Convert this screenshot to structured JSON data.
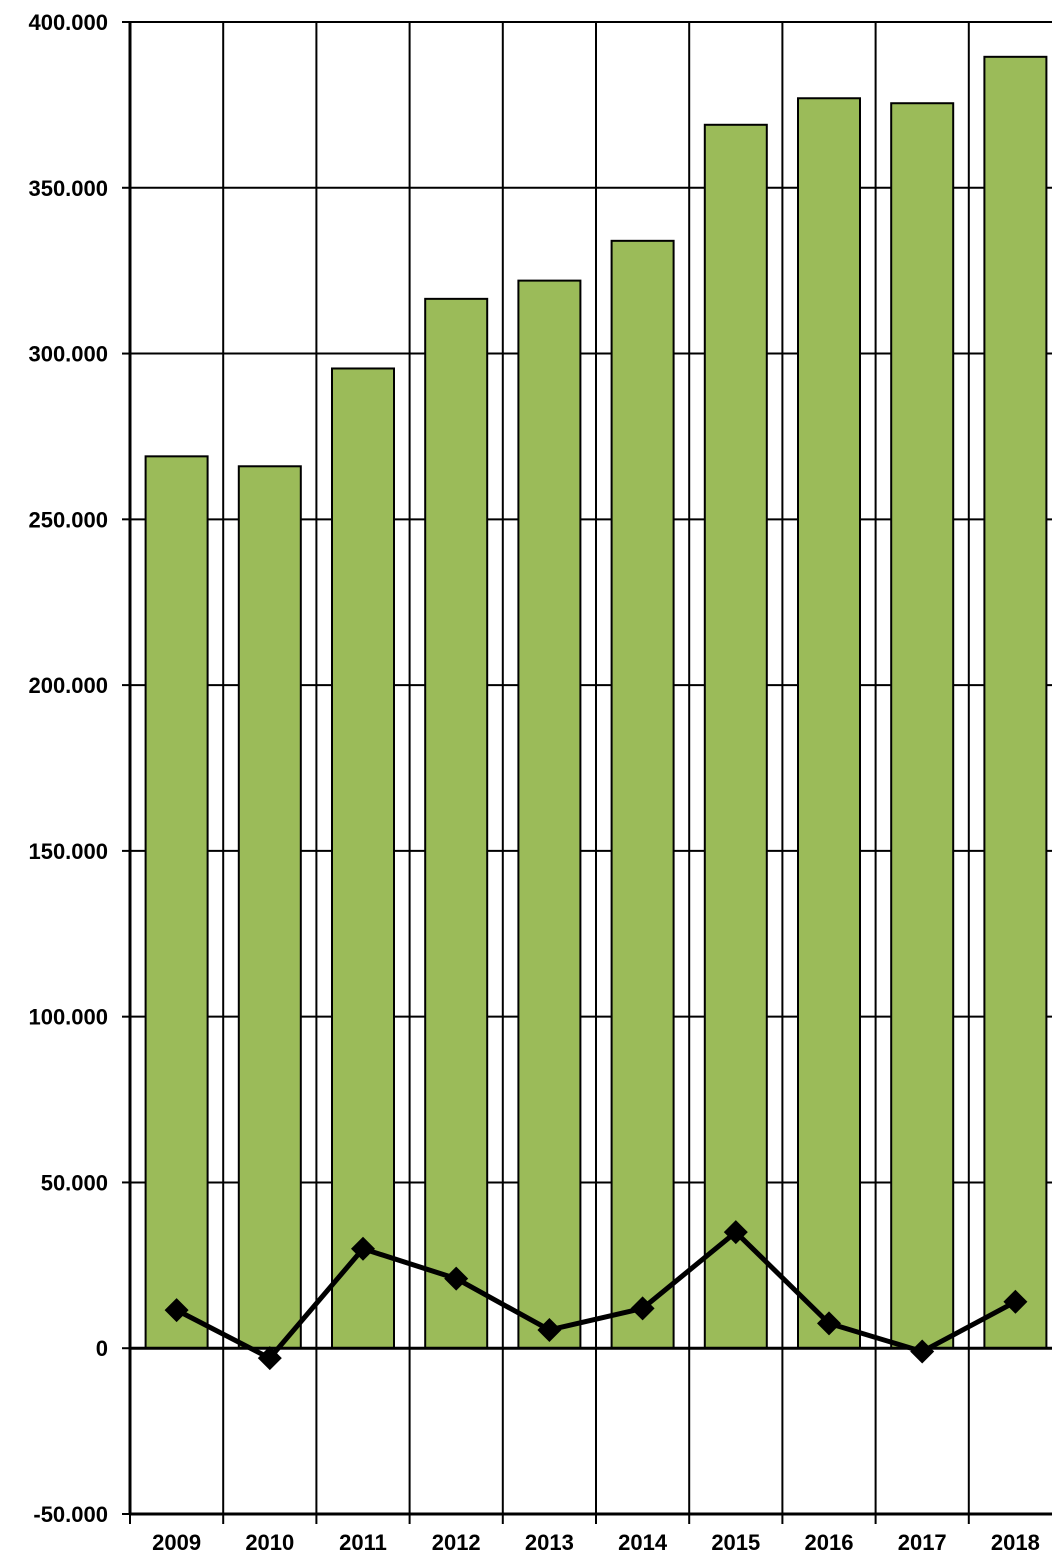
{
  "chart_data": {
    "type": "bar",
    "title": "",
    "xlabel": "",
    "ylabel": "",
    "categories": [
      "2009",
      "2010",
      "2011",
      "2012",
      "2013",
      "2014",
      "2015",
      "2016",
      "2017",
      "2018"
    ],
    "series": [
      {
        "type": "bar",
        "values": [
          269000,
          266000,
          295500,
          316500,
          322000,
          334000,
          369000,
          377000,
          375500,
          389500
        ],
        "color": "#9BBB59"
      },
      {
        "type": "line",
        "marker": "diamond",
        "values": [
          11500,
          -3000,
          30000,
          21000,
          5500,
          12000,
          35000,
          7500,
          -1000,
          14000
        ],
        "color": "#000000"
      }
    ],
    "ylim": [
      -50000,
      400000
    ],
    "yticks": [
      -50000,
      0,
      50000,
      100000,
      150000,
      200000,
      250000,
      300000,
      350000,
      400000
    ],
    "ytick_labels": [
      "-50.000",
      "0",
      "50.000",
      "100.000",
      "150.000",
      "200.000",
      "250.000",
      "300.000",
      "350.000",
      "400.000"
    ],
    "grid": {
      "horizontal": true,
      "vertical": true
    },
    "legend": "none"
  }
}
